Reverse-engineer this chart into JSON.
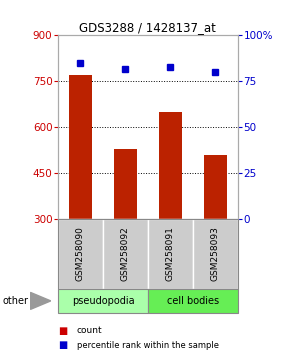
{
  "title": "GDS3288 / 1428137_at",
  "samples": [
    "GSM258090",
    "GSM258092",
    "GSM258091",
    "GSM258093"
  ],
  "bar_values": [
    770,
    530,
    650,
    510
  ],
  "percentile_values": [
    85,
    82,
    83,
    80
  ],
  "ylim_left": [
    300,
    900
  ],
  "ylim_right": [
    0,
    100
  ],
  "yticks_left": [
    300,
    450,
    600,
    750,
    900
  ],
  "yticks_right": [
    0,
    25,
    50,
    75,
    100
  ],
  "bar_color": "#bb2200",
  "dot_color": "#0000cc",
  "group_labels": [
    "pseudopodia",
    "cell bodies"
  ],
  "group_colors_light": "#aaffaa",
  "group_colors_dark": "#66ee55",
  "left_axis_color": "#cc0000",
  "right_axis_color": "#0000cc",
  "background_color": "#ffffff",
  "sample_area_color": "#cccccc",
  "other_label": "other",
  "legend_red": "#cc0000",
  "legend_blue": "#0000cc"
}
